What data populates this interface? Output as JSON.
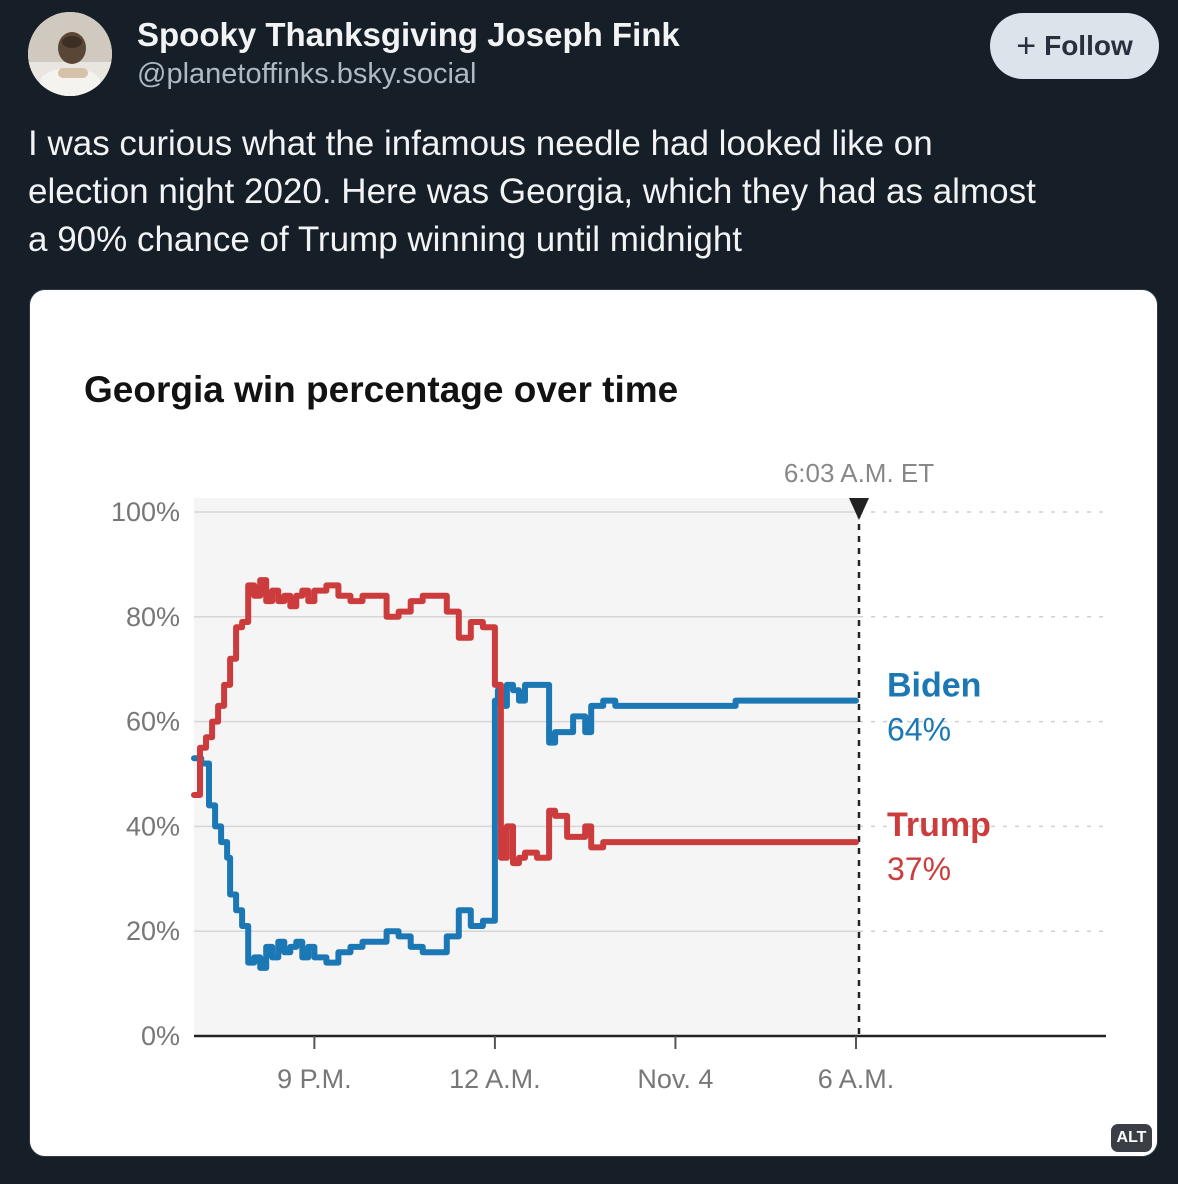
{
  "post": {
    "author_name": "Spooky Thanksgiving Joseph Fink",
    "author_handle": "@planetoffinks.bsky.social",
    "follow_label": "Follow",
    "text_lines": [
      "I was curious what the infamous needle had looked like on",
      "election night 2020. Here was Georgia, which they had as almost",
      "a 90% chance of Trump winning until midnight"
    ],
    "alt_label": "ALT"
  },
  "icons": {
    "follow": "plus-icon",
    "avatar": "avatar-photo"
  },
  "chart_data": {
    "type": "line",
    "title": "Georgia win percentage over time",
    "marker_label": "6:03 A.M. ET",
    "x_ticks": [
      "9 P.M.",
      "12 A.M.",
      "Nov. 4",
      "6 A.M."
    ],
    "y_ticks": [
      "0%",
      "20%",
      "40%",
      "60%",
      "80%",
      "100%"
    ],
    "ylim": [
      0,
      100
    ],
    "x_unit": "hours after 7 P.M. ET, Nov. 3",
    "xlim": [
      0,
      11.05
    ],
    "marker_x": 11.05,
    "x_tick_values": [
      2,
      5,
      8,
      11
    ],
    "grid": true,
    "series": [
      {
        "name": "Biden",
        "end_label": "64%",
        "color": "#1b78b4",
        "x": [
          0,
          0.12,
          0.25,
          0.35,
          0.45,
          0.55,
          0.6,
          0.7,
          0.8,
          0.9,
          1.0,
          1.1,
          1.2,
          1.3,
          1.4,
          1.5,
          1.6,
          1.7,
          1.8,
          1.9,
          2.0,
          2.2,
          2.4,
          2.6,
          2.8,
          3.0,
          3.2,
          3.4,
          3.6,
          3.8,
          4.0,
          4.2,
          4.4,
          4.6,
          4.7,
          4.8,
          4.9,
          5.0,
          5.05,
          5.1,
          5.2,
          5.3,
          5.4,
          5.5,
          5.7,
          5.9,
          6.0,
          6.2,
          6.3,
          6.5,
          6.6,
          6.8,
          7.0,
          7.5,
          8.0,
          8.5,
          9.0,
          9.5,
          10.0,
          10.5,
          11.0
        ],
        "y": [
          53,
          52,
          44,
          40,
          37,
          34,
          27,
          24,
          21,
          14,
          15,
          13,
          17,
          15,
          18,
          16,
          17,
          18,
          15,
          17,
          15,
          14,
          16,
          17,
          18,
          18,
          20,
          19,
          17,
          16,
          16,
          19,
          24,
          21,
          21,
          22,
          22,
          64,
          66,
          63,
          67,
          66,
          64,
          67,
          67,
          56,
          58,
          58,
          61,
          58,
          63,
          64,
          63,
          63,
          63,
          63,
          64,
          64,
          64,
          64,
          64
        ]
      },
      {
        "name": "Trump",
        "end_label": "37%",
        "color": "#cc3c3c",
        "x": [
          0,
          0.1,
          0.2,
          0.3,
          0.4,
          0.5,
          0.6,
          0.7,
          0.8,
          0.9,
          1.0,
          1.1,
          1.2,
          1.3,
          1.4,
          1.5,
          1.6,
          1.7,
          1.8,
          1.9,
          2.0,
          2.2,
          2.4,
          2.6,
          2.8,
          3.0,
          3.2,
          3.4,
          3.6,
          3.8,
          4.0,
          4.2,
          4.4,
          4.6,
          4.7,
          4.8,
          4.9,
          5.0,
          5.1,
          5.2,
          5.3,
          5.4,
          5.5,
          5.7,
          5.9,
          6.0,
          6.2,
          6.3,
          6.5,
          6.6,
          6.8,
          7.0,
          7.5,
          8.0,
          8.5,
          9.0,
          9.5,
          10.0,
          10.5,
          11.0
        ],
        "y": [
          46,
          55,
          57,
          60,
          63,
          67,
          72,
          78,
          79,
          86,
          84,
          87,
          83,
          85,
          83,
          84,
          82,
          84,
          85,
          83,
          85,
          86,
          84,
          83,
          84,
          84,
          80,
          81,
          83,
          84,
          84,
          81,
          76,
          79,
          79,
          78,
          78,
          67,
          34,
          40,
          33,
          34,
          35,
          34,
          43,
          42,
          38,
          38,
          40,
          36,
          37,
          37,
          37,
          37,
          37,
          37,
          37,
          37,
          37,
          37
        ]
      }
    ]
  }
}
